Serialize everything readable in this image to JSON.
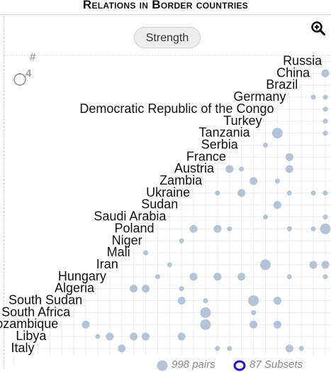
{
  "title": "Relations in Border countries",
  "strength_button": "Strength",
  "icons": {
    "zoom": "zoom-in-icon",
    "size_legend": "circle-size-icon",
    "pairs_dot": "pairs-dot-icon",
    "subsets_ring": "subsets-ring-icon"
  },
  "colors": {
    "dot": "#b4c3d6",
    "grid": "#ececec",
    "ring": "#1f16d8",
    "text": "#111111",
    "muted": "#8a8a8a"
  },
  "legend": {
    "hash": "#",
    "count": "4"
  },
  "footer": {
    "pairs": "998 pairs",
    "subsets": "87 Subsets"
  },
  "chart_data": {
    "type": "scatter",
    "title": "",
    "rows": [
      "Russia",
      "China",
      "Brazil",
      "Germany",
      "Democratic Republic of the Congo",
      "Turkey",
      "Tanzania",
      "Serbia",
      "France",
      "Austria",
      "Zambia",
      "Ukraine",
      "Sudan",
      "Saudi Arabia",
      "Poland",
      "Niger",
      "Mali",
      "Iran",
      "Hungary",
      "Algeria",
      "South Sudan",
      "South Africa",
      "Mozambique",
      "Libya",
      "Italy"
    ],
    "points": [
      {
        "row": 1,
        "col": 0,
        "size": 2
      },
      {
        "row": 3,
        "col": 1,
        "size": 1
      },
      {
        "row": 3,
        "col": 0,
        "size": 1
      },
      {
        "row": 4,
        "col": 0,
        "size": 1
      },
      {
        "row": 5,
        "col": 0,
        "size": 1
      },
      {
        "row": 6,
        "col": 4,
        "size": 3
      },
      {
        "row": 6,
        "col": 0,
        "size": 1
      },
      {
        "row": 7,
        "col": 5,
        "size": 1
      },
      {
        "row": 8,
        "col": 3,
        "size": 2
      },
      {
        "row": 9,
        "col": 8,
        "size": 2
      },
      {
        "row": 9,
        "col": 7,
        "size": 1
      },
      {
        "row": 9,
        "col": 3,
        "size": 2
      },
      {
        "row": 10,
        "col": 6,
        "size": 2
      },
      {
        "row": 10,
        "col": 4,
        "size": 1
      },
      {
        "row": 11,
        "col": 9,
        "size": 1
      },
      {
        "row": 11,
        "col": 7,
        "size": 2
      },
      {
        "row": 11,
        "col": 3,
        "size": 1
      },
      {
        "row": 11,
        "col": 1,
        "size": 1
      },
      {
        "row": 11,
        "col": 0,
        "size": 1
      },
      {
        "row": 12,
        "col": 4,
        "size": 2
      },
      {
        "row": 13,
        "col": 5,
        "size": 1
      },
      {
        "row": 13,
        "col": 0,
        "size": 1
      },
      {
        "row": 14,
        "col": 11,
        "size": 2
      },
      {
        "row": 14,
        "col": 9,
        "size": 2
      },
      {
        "row": 14,
        "col": 8,
        "size": 1
      },
      {
        "row": 14,
        "col": 3,
        "size": 1
      },
      {
        "row": 14,
        "col": 1,
        "size": 1
      },
      {
        "row": 14,
        "col": 0,
        "size": 3
      },
      {
        "row": 15,
        "col": 12,
        "size": 1
      },
      {
        "row": 16,
        "col": 15,
        "size": 1
      },
      {
        "row": 17,
        "col": 13,
        "size": 1
      },
      {
        "row": 17,
        "col": 5,
        "size": 3
      },
      {
        "row": 17,
        "col": 1,
        "size": 2
      },
      {
        "row": 17,
        "col": 0,
        "size": 2
      },
      {
        "row": 18,
        "col": 14,
        "size": 1
      },
      {
        "row": 18,
        "col": 11,
        "size": 2
      },
      {
        "row": 18,
        "col": 9,
        "size": 2
      },
      {
        "row": 18,
        "col": 7,
        "size": 2
      },
      {
        "row": 18,
        "col": 3,
        "size": 1
      },
      {
        "row": 18,
        "col": 0,
        "size": 1
      },
      {
        "row": 19,
        "col": 16,
        "size": 2
      },
      {
        "row": 19,
        "col": 15,
        "size": 2
      },
      {
        "row": 19,
        "col": 12,
        "size": 1
      },
      {
        "row": 20,
        "col": 12,
        "size": 2
      },
      {
        "row": 20,
        "col": 10,
        "size": 1
      },
      {
        "row": 20,
        "col": 6,
        "size": 3
      },
      {
        "row": 20,
        "col": 4,
        "size": 2
      },
      {
        "row": 21,
        "col": 10,
        "size": 3
      },
      {
        "row": 21,
        "col": 6,
        "size": 1
      },
      {
        "row": 22,
        "col": 20,
        "size": 2
      },
      {
        "row": 22,
        "col": 10,
        "size": 3
      },
      {
        "row": 22,
        "col": 6,
        "size": 2
      },
      {
        "row": 22,
        "col": 4,
        "size": 2
      },
      {
        "row": 23,
        "col": 19,
        "size": 1
      },
      {
        "row": 23,
        "col": 18,
        "size": 2
      },
      {
        "row": 23,
        "col": 16,
        "size": 2
      },
      {
        "row": 23,
        "col": 15,
        "size": 2
      },
      {
        "row": 23,
        "col": 12,
        "size": 2
      },
      {
        "row": 24,
        "col": 17,
        "size": 2
      },
      {
        "row": 24,
        "col": 9,
        "size": 1
      },
      {
        "row": 24,
        "col": 8,
        "size": 1
      },
      {
        "row": 24,
        "col": 3,
        "size": 2
      },
      {
        "row": 24,
        "col": 2,
        "size": 1
      }
    ]
  }
}
